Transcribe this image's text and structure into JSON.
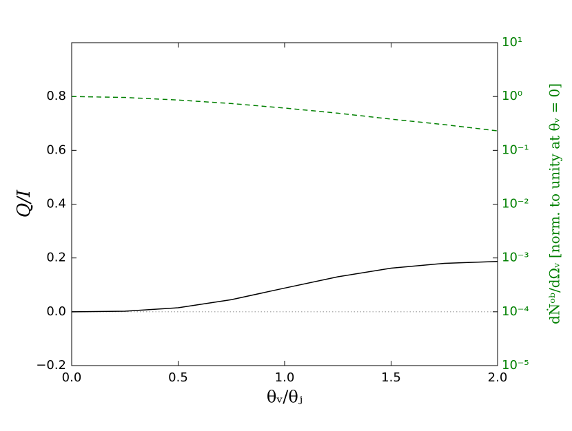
{
  "chart_data": {
    "type": "line",
    "x_label": "θᵥ/θⱼ",
    "y_label": "Q/I",
    "y2_label": "dṄᵒᵇ/dΩᵥ [norm. to unity at θᵥ = 0]",
    "x": [
      0,
      0.25,
      0.5,
      0.75,
      1.0,
      1.25,
      1.5,
      1.75,
      2.0
    ],
    "series": [
      {
        "color": "#000000",
        "style": "solid",
        "values": [
          0,
          0.002,
          0.015,
          0.045,
          0.088,
          0.13,
          0.162,
          0.18,
          0.187
        ]
      },
      {
        "color": "#008000",
        "style": "dashed",
        "axis": "y2",
        "values": [
          1.0,
          0.96,
          0.86,
          0.74,
          0.61,
          0.49,
          0.38,
          0.3,
          0.23
        ]
      }
    ],
    "hline": {
      "value": 0,
      "color": "#999999"
    },
    "xlim": [
      0,
      2
    ],
    "xticks": [
      {
        "value": 0,
        "label": "0.0"
      },
      {
        "value": 0.5,
        "label": "0.5"
      },
      {
        "value": 1,
        "label": "1.0"
      },
      {
        "value": 1.5,
        "label": "1.5"
      },
      {
        "value": 2,
        "label": "2.0"
      }
    ],
    "ylim": [
      -0.2,
      1.0
    ],
    "yticks": [
      {
        "value": -0.2,
        "label": "−0.2"
      },
      {
        "value": 0,
        "label": "0.0"
      },
      {
        "value": 0.2,
        "label": "0.2"
      },
      {
        "value": 0.4,
        "label": "0.4"
      },
      {
        "value": 0.6,
        "label": "0.6"
      },
      {
        "value": 0.8,
        "label": "0.8"
      }
    ],
    "y2lim": [
      1e-05,
      10
    ],
    "y2_log": true,
    "y2_color": "#008000",
    "y2ticks": [
      {
        "value": 1e-05,
        "label": "10⁻⁵"
      },
      {
        "value": 0.0001,
        "label": "10⁻⁴"
      },
      {
        "value": 0.001,
        "label": "10⁻³"
      },
      {
        "value": 0.01,
        "label": "10⁻²"
      },
      {
        "value": 0.1,
        "label": "10⁻¹"
      },
      {
        "value": 1,
        "label": "10⁰"
      },
      {
        "value": 10,
        "label": "10¹"
      }
    ]
  }
}
